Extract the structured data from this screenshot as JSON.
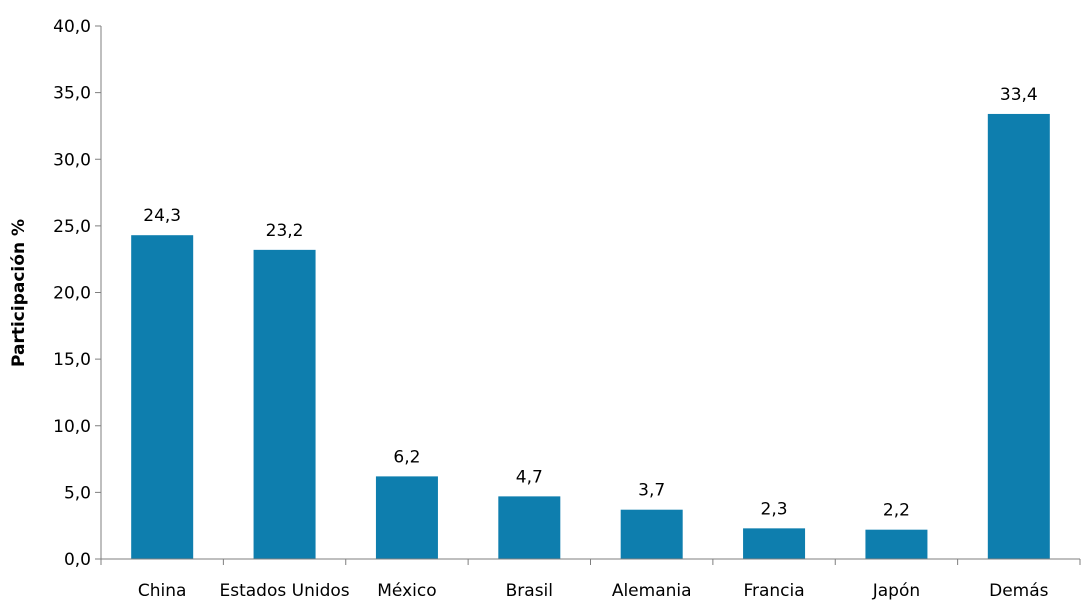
{
  "chart_data": {
    "type": "bar",
    "categories": [
      "China",
      "Estados Unidos",
      "México",
      "Brasil",
      "Alemania",
      "Francia",
      "Japón",
      "Demás"
    ],
    "values": [
      24.3,
      23.2,
      6.2,
      4.7,
      3.7,
      2.3,
      2.2,
      33.4
    ],
    "value_labels": [
      "24,3",
      "23,2",
      "6,2",
      "4,7",
      "3,7",
      "2,3",
      "2,2",
      "33,4"
    ],
    "ylabel": "Participación %",
    "ylim": [
      0,
      40
    ],
    "yticks": [
      0,
      5,
      10,
      15,
      20,
      25,
      30,
      35,
      40
    ],
    "ytick_labels": [
      "0,0",
      "5,0",
      "10,0",
      "15,0",
      "20,0",
      "25,0",
      "30,0",
      "35,0",
      "40,0"
    ],
    "grid": false,
    "legend": "none",
    "bar_color": "#0E7EAE"
  }
}
